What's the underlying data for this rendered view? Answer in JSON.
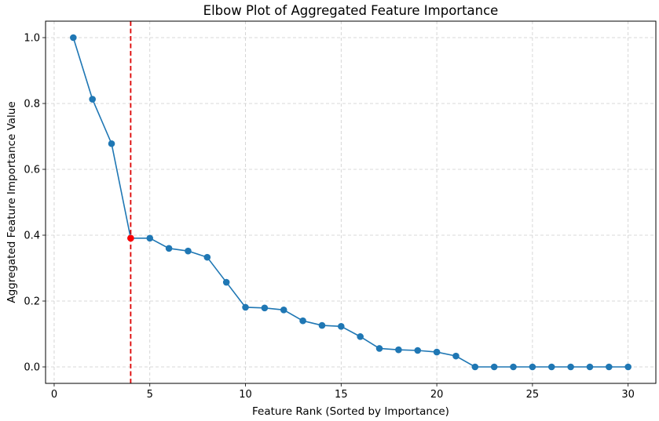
{
  "chart_data": {
    "type": "line",
    "title": "Elbow Plot of Aggregated Feature Importance",
    "xlabel": "Feature Rank (Sorted by Importance)",
    "ylabel": "Aggregated Feature Importance Value",
    "xlim": [
      -0.45,
      31.45
    ],
    "ylim": [
      -0.05,
      1.05
    ],
    "xticks": [
      0,
      5,
      10,
      15,
      20,
      25,
      30
    ],
    "yticks": [
      0.0,
      0.2,
      0.4,
      0.6,
      0.8,
      1.0
    ],
    "xtick_labels": [
      "0",
      "5",
      "10",
      "15",
      "20",
      "25",
      "30"
    ],
    "ytick_labels": [
      "0.0",
      "0.2",
      "0.4",
      "0.6",
      "0.8",
      "1.0"
    ],
    "grid": true,
    "grid_style": "dashed",
    "legend": false,
    "series": [
      {
        "color": "#1f77b4",
        "marker": "circle",
        "x": [
          1,
          2,
          3,
          4,
          5,
          6,
          7,
          8,
          9,
          10,
          11,
          12,
          13,
          14,
          15,
          16,
          17,
          18,
          19,
          20,
          21,
          22,
          23,
          24,
          25,
          26,
          27,
          28,
          29,
          30
        ],
        "y": [
          1.0,
          0.813,
          0.678,
          0.391,
          0.391,
          0.36,
          0.352,
          0.333,
          0.257,
          0.181,
          0.179,
          0.173,
          0.14,
          0.126,
          0.123,
          0.092,
          0.056,
          0.052,
          0.05,
          0.045,
          0.033,
          0.0,
          0.0,
          0.0,
          0.0,
          0.0,
          0.0,
          0.0,
          0.0,
          0.0
        ]
      }
    ],
    "elbow": {
      "x": 4,
      "y": 0.391,
      "marker_color": "#ff0000",
      "line_color": "#dd0000",
      "line_style": "dashed"
    }
  }
}
